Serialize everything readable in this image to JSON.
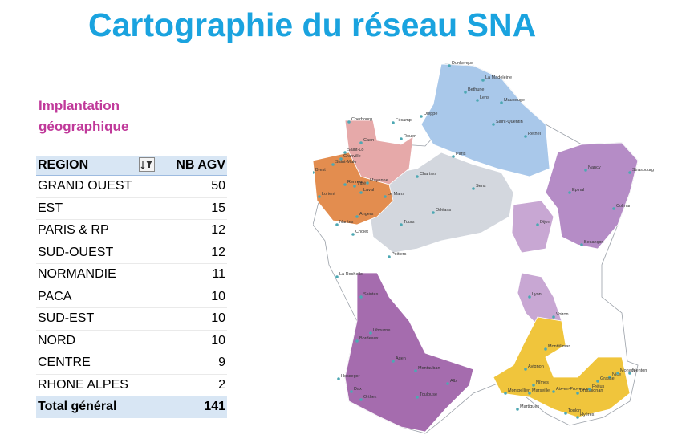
{
  "title": "Cartographie du réseau SNA",
  "subtitle": [
    "Implantation",
    "géographique"
  ],
  "table": {
    "col_region": "REGION",
    "col_nb": "NB AGV",
    "rows": [
      {
        "region": "GRAND OUEST",
        "nb": 50
      },
      {
        "region": "EST",
        "nb": 15
      },
      {
        "region": "PARIS & RP",
        "nb": 12
      },
      {
        "region": "SUD-OUEST",
        "nb": 12
      },
      {
        "region": "NORMANDIE",
        "nb": 11
      },
      {
        "region": "PACA",
        "nb": 10
      },
      {
        "region": "SUD-EST",
        "nb": 10
      },
      {
        "region": "NORD",
        "nb": 10
      },
      {
        "region": "CENTRE",
        "nb": 9
      },
      {
        "region": "RHONE ALPES",
        "nb": 2
      }
    ],
    "total_label": "Total général",
    "total_value": 141
  },
  "colors": {
    "title": "#1aa3df",
    "subtitle": "#c0399a",
    "nord": "#a9c8ea",
    "normandie": "#e6a9a9",
    "grand_ouest": "#e38d4f",
    "centre": "#d3d7de",
    "est": "#b58cc6",
    "sud_ouest": "#a56cae",
    "paca": "#f0c53c",
    "rhone_alpes": "#c8a7d3",
    "dot": "#4da8b3"
  },
  "map_cities": [
    "Dunkerque",
    "La Madeleine",
    "Bethune",
    "Lens",
    "Maubeuge",
    "Dieppe",
    "Saint-Quentin",
    "Rethel",
    "Cherbourg",
    "Fécamp",
    "Caen",
    "Rouen",
    "Paris",
    "Saint-Lo",
    "Granville",
    "Saint-Malo",
    "Brest",
    "Lorient",
    "Rennes",
    "Vitré",
    "Laval",
    "Mayenne",
    "Le Mans",
    "Chartres",
    "Angers",
    "Nantes",
    "Cholet",
    "Tours",
    "Orléans",
    "Sens",
    "La Rochelle",
    "Poitiers",
    "Saintes",
    "Libourne",
    "Bordeaux",
    "Agen",
    "Montauban",
    "Toulouse",
    "Albi",
    "Hossegor",
    "Dax",
    "Orthez",
    "Nancy",
    "Strasbourg",
    "Epinal",
    "Colmar",
    "Dijon",
    "Besançon",
    "Lyon",
    "Voiron",
    "Montélimar",
    "Avignon",
    "Nîmes",
    "Montpellier",
    "Marseille",
    "Toulon",
    "Draguignan",
    "Nice",
    "Menton",
    "Monaco",
    "Hyères",
    "Martigues",
    "Aix-en-Provence",
    "Fréjus",
    "Grasse"
  ]
}
